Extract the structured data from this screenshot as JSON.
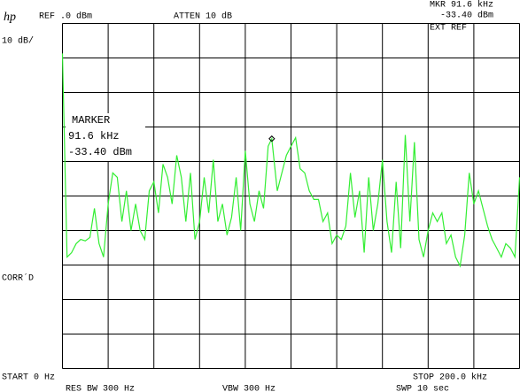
{
  "chart_data": {
    "type": "line",
    "logo": "hp",
    "ref_level": "REF .0 dBm",
    "attenuation": "ATTEN 10 dB",
    "marker_readout_freq": "MKR  91.6 kHz",
    "marker_readout_level": "-33.40 dBm",
    "ext_ref": "EXT REF",
    "scale": "10 dB/",
    "marker_title": "MARKER",
    "marker_freq": "91.6 kHz",
    "marker_level": "-33.40 dBm",
    "corrected": "CORR´D",
    "start": "START 0 Hz",
    "stop": "STOP 200.0 kHz",
    "res_bw": "RES BW 300 Hz",
    "vbw": "VBW 300 Hz",
    "sweep": "SWP 10  sec",
    "color": "#33ee33",
    "xlim": [
      0,
      200
    ],
    "ylim": [
      -100,
      0
    ],
    "xticks": [
      0,
      20,
      40,
      60,
      80,
      100,
      120,
      140,
      160,
      180,
      200
    ],
    "yticks": [
      -100,
      -90,
      -80,
      -70,
      -60,
      -50,
      -40,
      -30,
      -20,
      -10,
      0
    ],
    "grid": true,
    "marker": {
      "x": 91.6,
      "y": -33.4
    },
    "x": [
      0,
      2,
      4,
      6,
      8,
      10,
      12,
      14,
      16,
      18,
      20,
      22,
      24,
      26,
      28,
      30,
      32,
      34,
      36,
      38,
      40,
      42,
      44,
      46,
      48,
      50,
      52,
      54,
      56,
      58,
      60,
      62,
      64,
      66,
      68,
      70,
      72,
      74,
      76,
      78,
      80,
      82,
      84,
      86,
      88,
      90,
      91.6,
      94,
      96,
      98,
      100,
      102,
      104,
      106,
      108,
      110,
      112,
      114,
      116,
      118,
      120,
      122,
      124,
      126,
      128,
      130,
      132,
      134,
      136,
      138,
      140,
      142,
      144,
      146,
      148,
      150,
      152,
      154,
      156,
      158,
      160,
      162,
      164,
      166,
      168,
      170,
      172,
      174,
      176,
      178,
      180,
      182,
      184,
      186,
      188,
      190,
      192,
      194,
      196,
      198,
      200
    ],
    "values": [
      -8.7,
      -67.7,
      -66.4,
      -63.8,
      -62.6,
      -63,
      -62,
      -53.6,
      -63.8,
      -67.7,
      -52.3,
      -43.3,
      -44.6,
      -57.4,
      -48.5,
      -60,
      -52.3,
      -60,
      -62.6,
      -48.5,
      -45.9,
      -54.9,
      -40.8,
      -44.6,
      -52.3,
      -38.2,
      -44.6,
      -57.4,
      -43.3,
      -62.6,
      -57.4,
      -44.6,
      -54.9,
      -39.5,
      -57.4,
      -52.3,
      -61.3,
      -56.2,
      -44.6,
      -60,
      -36.9,
      -52.3,
      -57.4,
      -48.5,
      -53.6,
      -35.6,
      -33.4,
      -48.5,
      -43.3,
      -38.2,
      -35.6,
      -33.1,
      -42.1,
      -43.3,
      -48.5,
      -51,
      -51,
      -57.4,
      -54.9,
      -63.8,
      -61.3,
      -62.6,
      -58.7,
      -43.3,
      -56.2,
      -48.5,
      -66.4,
      -44.6,
      -60,
      -52.3,
      -39.5,
      -57.4,
      -66.4,
      -45.9,
      -65.1,
      -32.3,
      -57.4,
      -34.4,
      -62.6,
      -67.7,
      -60,
      -54.9,
      -57.4,
      -54.9,
      -63.8,
      -61.3,
      -67.7,
      -70.3,
      -61.3,
      -43.3,
      -52.3,
      -48.5,
      -53.6,
      -58.7,
      -62.6,
      -65.1,
      -67.7,
      -63.8,
      -65.1,
      -67.7,
      -44.6
    ]
  }
}
